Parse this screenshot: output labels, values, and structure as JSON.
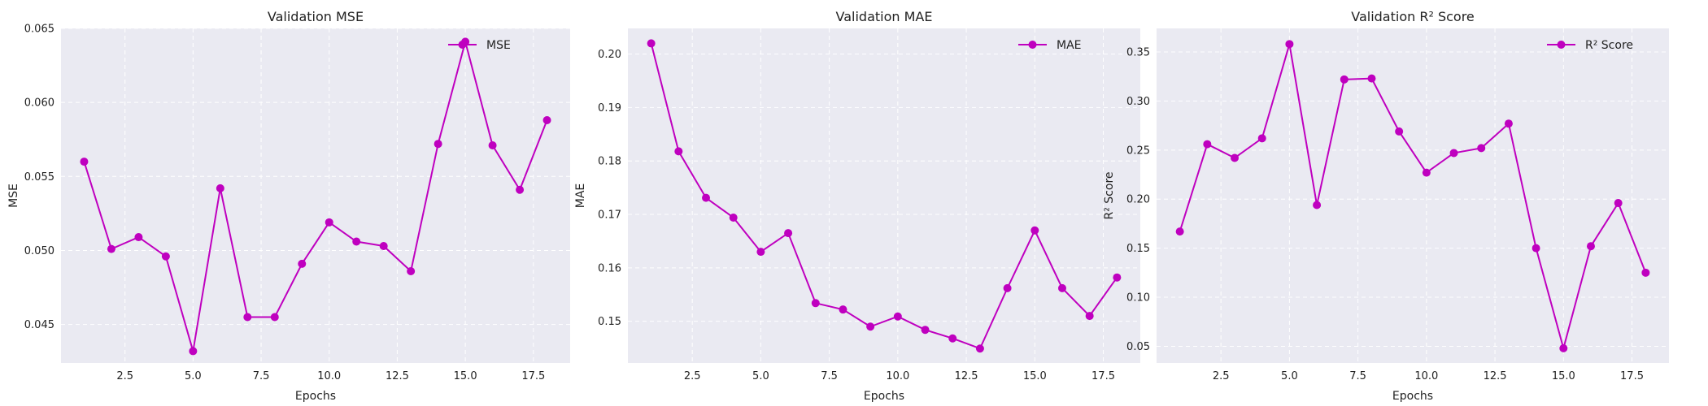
{
  "chart_data": [
    {
      "type": "line",
      "title": "Validation MSE",
      "xlabel": "Epochs",
      "ylabel": "MSE",
      "xlim": [
        0.15,
        18.85
      ],
      "ylim": [
        0.0424,
        0.065
      ],
      "xticks": [
        2.5,
        5.0,
        7.5,
        10.0,
        12.5,
        15.0,
        17.5
      ],
      "xtick_labels": [
        "2.5",
        "5.0",
        "7.5",
        "10.0",
        "12.5",
        "15.0",
        "17.5"
      ],
      "yticks": [
        0.045,
        0.05,
        0.055,
        0.06,
        0.065
      ],
      "ytick_labels": [
        "0.045",
        "0.050",
        "0.055",
        "0.060",
        "0.065"
      ],
      "grid": true,
      "legend_position": "top-right",
      "color": "#bf00bf",
      "series": [
        {
          "name": "MSE",
          "x": [
            1,
            2,
            3,
            4,
            5,
            6,
            7,
            8,
            9,
            10,
            11,
            12,
            13,
            14,
            15,
            16,
            17,
            18
          ],
          "y": [
            0.056,
            0.0501,
            0.0509,
            0.0496,
            0.0432,
            0.0542,
            0.0455,
            0.0455,
            0.0491,
            0.0519,
            0.0506,
            0.0503,
            0.0486,
            0.0572,
            0.0641,
            0.0571,
            0.0541,
            0.0588
          ]
        }
      ]
    },
    {
      "type": "line",
      "title": "Validation MAE",
      "xlabel": "Epochs",
      "ylabel": "MAE",
      "xlim": [
        0.15,
        18.85
      ],
      "ylim": [
        0.1422,
        0.2048
      ],
      "xticks": [
        2.5,
        5.0,
        7.5,
        10.0,
        12.5,
        15.0,
        17.5
      ],
      "xtick_labels": [
        "2.5",
        "5.0",
        "7.5",
        "10.0",
        "12.5",
        "15.0",
        "17.5"
      ],
      "yticks": [
        0.15,
        0.16,
        0.17,
        0.18,
        0.19,
        0.2
      ],
      "ytick_labels": [
        "0.15",
        "0.16",
        "0.17",
        "0.18",
        "0.19",
        "0.20"
      ],
      "grid": true,
      "legend_position": "top-right",
      "color": "#bf00bf",
      "series": [
        {
          "name": "MAE",
          "x": [
            1,
            2,
            3,
            4,
            5,
            6,
            7,
            8,
            9,
            10,
            11,
            12,
            13,
            14,
            15,
            16,
            17,
            18
          ],
          "y": [
            0.202,
            0.1818,
            0.1731,
            0.1694,
            0.163,
            0.1665,
            0.1534,
            0.1522,
            0.149,
            0.1509,
            0.1484,
            0.1468,
            0.1449,
            0.1562,
            0.167,
            0.1562,
            0.151,
            0.1582
          ]
        }
      ]
    },
    {
      "type": "line",
      "title": "Validation R² Score",
      "xlabel": "Epochs",
      "ylabel": "R² Score",
      "xlim": [
        0.15,
        18.85
      ],
      "ylim": [
        0.033,
        0.374
      ],
      "xticks": [
        2.5,
        5.0,
        7.5,
        10.0,
        12.5,
        15.0,
        17.5
      ],
      "xtick_labels": [
        "2.5",
        "5.0",
        "7.5",
        "10.0",
        "12.5",
        "15.0",
        "17.5"
      ],
      "yticks": [
        0.05,
        0.1,
        0.15,
        0.2,
        0.25,
        0.3,
        0.35
      ],
      "ytick_labels": [
        "0.05",
        "0.10",
        "0.15",
        "0.20",
        "0.25",
        "0.30",
        "0.35"
      ],
      "grid": true,
      "legend_position": "top-right",
      "color": "#bf00bf",
      "series": [
        {
          "name": "R² Score",
          "x": [
            1,
            2,
            3,
            4,
            5,
            6,
            7,
            8,
            9,
            10,
            11,
            12,
            13,
            14,
            15,
            16,
            17,
            18
          ],
          "y": [
            0.167,
            0.256,
            0.242,
            0.262,
            0.358,
            0.194,
            0.322,
            0.323,
            0.269,
            0.227,
            0.247,
            0.252,
            0.277,
            0.15,
            0.048,
            0.152,
            0.196,
            0.125
          ]
        }
      ]
    }
  ]
}
